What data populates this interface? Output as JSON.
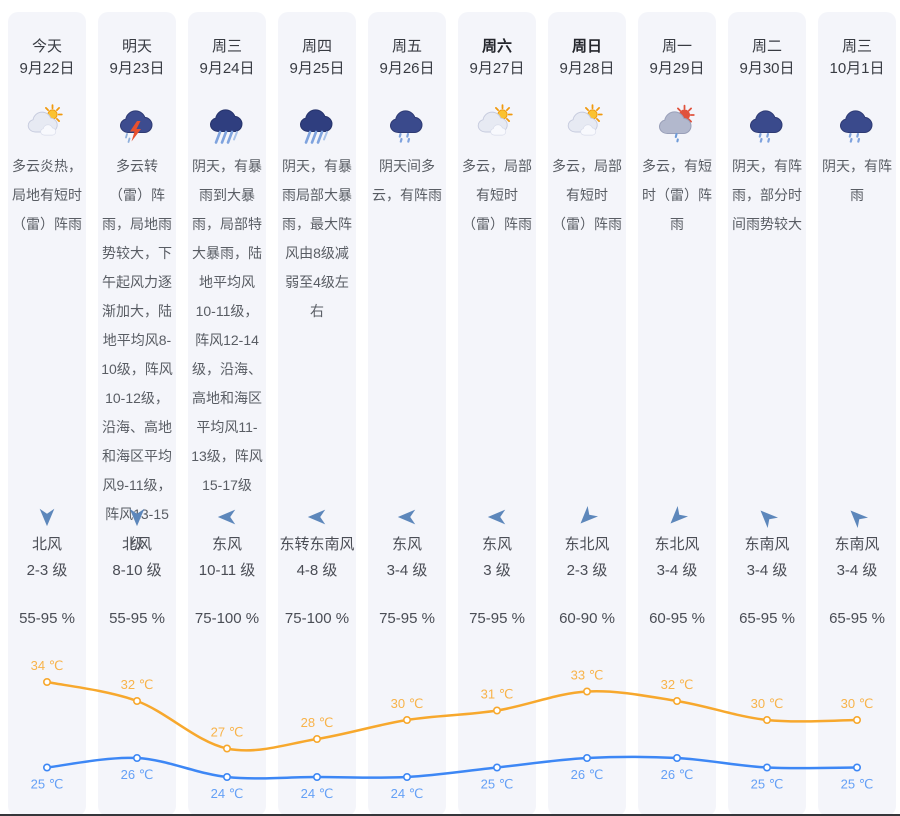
{
  "colors": {
    "column_bg": "#f4f5fa",
    "high_line": "#f7a82d",
    "high_label": "#f8b34a",
    "low_line": "#3d87f5",
    "low_label": "#64a0f6",
    "wind_arrow": "#5d87bb"
  },
  "days": [
    {
      "label": "今天",
      "date": "9月22日",
      "bold": false,
      "icon": "partly-cloudy",
      "desc": "多云炎热，局地有短时（雷）阵雨",
      "wind_dir": "北风",
      "wind_level": "2-3 级",
      "wind_arrow": "down",
      "humidity": "55-95 %",
      "high": 34,
      "low": 25
    },
    {
      "label": "明天",
      "date": "9月23日",
      "bold": false,
      "icon": "thunderstorm",
      "desc": "多云转（雷）阵雨，局地雨势较大，下午起风力逐渐加大，陆地平均风8-10级，阵风10-12级，沿海、高地和海区平均风9-11级，阵风13-15级",
      "wind_dir": "北风",
      "wind_level": "8-10 级",
      "wind_arrow": "down",
      "humidity": "55-95 %",
      "high": 32,
      "low": 26
    },
    {
      "label": "周三",
      "date": "9月24日",
      "bold": false,
      "icon": "heavy-rain",
      "desc": "阴天，有暴雨到大暴雨，局部特大暴雨，陆地平均风10-11级，阵风12-14级，沿海、高地和海区平均风11-13级，阵风15-17级",
      "wind_dir": "东风",
      "wind_level": "10-11 级",
      "wind_arrow": "left",
      "humidity": "75-100 %",
      "high": 27,
      "low": 24
    },
    {
      "label": "周四",
      "date": "9月25日",
      "bold": false,
      "icon": "heavy-rain",
      "desc": "阴天，有暴雨局部大暴雨，最大阵风由8级减弱至4级左右",
      "wind_dir": "东转东南风",
      "wind_level": "4-8 级",
      "wind_arrow": "left",
      "humidity": "75-100 %",
      "high": 28,
      "low": 24
    },
    {
      "label": "周五",
      "date": "9月26日",
      "bold": false,
      "icon": "shower",
      "desc": "阴天间多云，有阵雨",
      "wind_dir": "东风",
      "wind_level": "3-4 级",
      "wind_arrow": "left",
      "humidity": "75-95 %",
      "high": 30,
      "low": 24
    },
    {
      "label": "周六",
      "date": "9月27日",
      "bold": true,
      "icon": "partly-cloudy",
      "desc": "多云，局部有短时（雷）阵雨",
      "wind_dir": "东风",
      "wind_level": "3 级",
      "wind_arrow": "left",
      "humidity": "75-95 %",
      "high": 31,
      "low": 25
    },
    {
      "label": "周日",
      "date": "9月28日",
      "bold": true,
      "icon": "partly-cloudy",
      "desc": "多云，局部有短时（雷）阵雨",
      "wind_dir": "东北风",
      "wind_level": "2-3 级",
      "wind_arrow": "down-left",
      "humidity": "60-90 %",
      "high": 33,
      "low": 26
    },
    {
      "label": "周一",
      "date": "9月29日",
      "bold": false,
      "icon": "sun-shower",
      "desc": "多云，有短时（雷）阵雨",
      "wind_dir": "东北风",
      "wind_level": "3-4 级",
      "wind_arrow": "down-left",
      "humidity": "60-95 %",
      "high": 32,
      "low": 26
    },
    {
      "label": "周二",
      "date": "9月30日",
      "bold": false,
      "icon": "shower",
      "desc": "阴天，有阵雨，部分时间雨势较大",
      "wind_dir": "东南风",
      "wind_level": "3-4 级",
      "wind_arrow": "up-left",
      "humidity": "65-95 %",
      "high": 30,
      "low": 25
    },
    {
      "label": "周三",
      "date": "10月1日",
      "bold": false,
      "icon": "shower",
      "desc": "阴天，有阵雨",
      "wind_dir": "东南风",
      "wind_level": "3-4 级",
      "wind_arrow": "up-left",
      "humidity": "65-95 %",
      "high": 30,
      "low": 25
    }
  ],
  "chart_data": {
    "type": "line",
    "categories": [
      "9月22日",
      "9月23日",
      "9月24日",
      "9月25日",
      "9月26日",
      "9月27日",
      "9月28日",
      "9月29日",
      "9月30日",
      "10月1日"
    ],
    "series": [
      {
        "name": "high-temp",
        "values": [
          34,
          32,
          27,
          28,
          30,
          31,
          33,
          32,
          30,
          30
        ],
        "color": "#f7a82d",
        "label_color": "#f8b34a",
        "label_position": "above"
      },
      {
        "name": "low-temp",
        "values": [
          25,
          26,
          24,
          24,
          24,
          25,
          26,
          26,
          25,
          25
        ],
        "color": "#3d87f5",
        "label_color": "#64a0f6",
        "label_position": "below"
      }
    ],
    "unit": "℃",
    "grid": false,
    "legend": "none",
    "ylim": [
      23,
      35
    ]
  }
}
